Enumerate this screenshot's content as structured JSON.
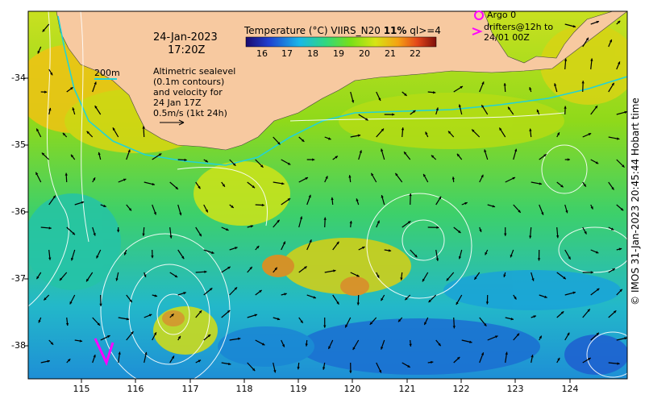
{
  "date": "24-Jan-2023",
  "time": "17:20Z",
  "colorbar": {
    "title_pre": "Temperature (°C) VIIRS_N20 ",
    "title_bold": "11%",
    "title_post": " ql>=4",
    "ticks": [
      "16",
      "17",
      "18",
      "19",
      "20",
      "21",
      "22"
    ]
  },
  "legend": {
    "argo_label": "Argo 0",
    "drifter_line1": "drifters@12h to",
    "drifter_line2": "24/01 00Z",
    "argo_color": "#ff00ff"
  },
  "contour_scale": "200m",
  "altimetry_note": [
    "Altimetric sealevel",
    "(0.1m contours)",
    "and velocity for",
    "24 Jan 17Z"
  ],
  "velocity_scale": "0.5m/s (1kt 24h)",
  "lat_ticks": [
    "-34",
    "-35",
    "-36",
    "-37",
    "-38"
  ],
  "lon_ticks": [
    "115",
    "116",
    "117",
    "118",
    "119",
    "120",
    "121",
    "122",
    "123",
    "124"
  ],
  "credit": "© IMOS 31-Jan-2023 20:45:44 Hobart time",
  "colors": {
    "land": "#f7c9a0",
    "contour": "#ffffff",
    "isobath": "#22d3d6",
    "arrow": "#000000"
  }
}
